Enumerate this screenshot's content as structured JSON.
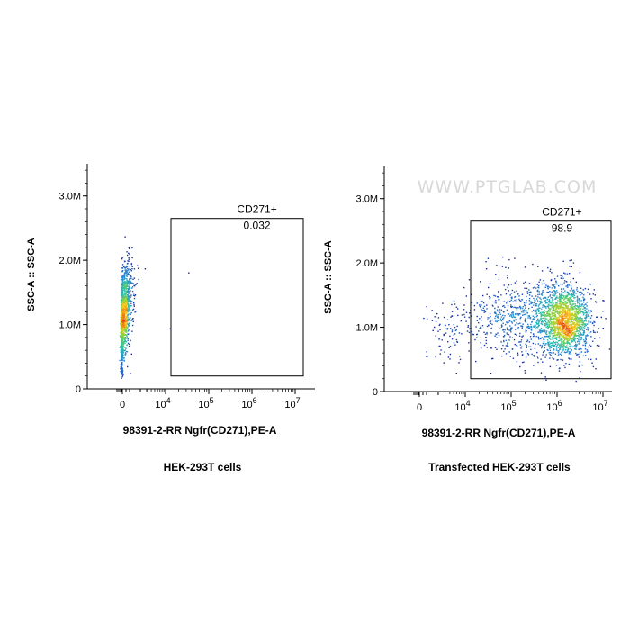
{
  "chart_data": [
    {
      "type": "scatter",
      "title": "",
      "xlabel": "98391-2-RR Ngfr(CD271),PE-A",
      "ylabel": "SSC-A :: SSC-A",
      "xscale": "biexponential",
      "xticks": [
        {
          "value": 0,
          "label": "0",
          "exp": ""
        },
        {
          "value": 10000,
          "label": "10",
          "exp": "4"
        },
        {
          "value": 100000,
          "label": "10",
          "exp": "5"
        },
        {
          "value": 1000000,
          "label": "10",
          "exp": "6"
        },
        {
          "value": 10000000,
          "label": "10",
          "exp": "7"
        }
      ],
      "yticks": [
        {
          "value": 0,
          "label": "0"
        },
        {
          "value": 1000000,
          "label": "1.0M"
        },
        {
          "value": 2000000,
          "label": "2.0M"
        },
        {
          "value": 3000000,
          "label": "3.0M"
        }
      ],
      "ylim": [
        0,
        3500000
      ],
      "gate": {
        "name": "CD271+",
        "value": "0.032",
        "x_range": [
          10000,
          10000000
        ],
        "y_range": [
          200000,
          2650000
        ]
      },
      "caption": "HEK-293T cells",
      "watermark": "",
      "populations": [
        {
          "x_center": 0,
          "x_spread_decades": 0.12,
          "y_center": 1150000,
          "y_spread": 380000,
          "tilt": "vertical",
          "count": 1400
        },
        {
          "x_center": 30000,
          "x_spread_decades": 0.05,
          "y_center": 1900000,
          "y_spread": 50000,
          "count": 1
        },
        {
          "x_center": 12000,
          "x_spread_decades": 0.05,
          "y_center": 950000,
          "y_spread": 50000,
          "count": 1
        }
      ]
    },
    {
      "type": "scatter",
      "title": "",
      "xlabel": "98391-2-RR Ngfr(CD271),PE-A",
      "ylabel": "SSC-A :: SSC-A",
      "xscale": "biexponential",
      "xticks": [
        {
          "value": 0,
          "label": "0",
          "exp": ""
        },
        {
          "value": 10000,
          "label": "10",
          "exp": "4"
        },
        {
          "value": 100000,
          "label": "10",
          "exp": "5"
        },
        {
          "value": 1000000,
          "label": "10",
          "exp": "6"
        },
        {
          "value": 10000000,
          "label": "10",
          "exp": "7"
        }
      ],
      "yticks": [
        {
          "value": 0,
          "label": "0"
        },
        {
          "value": 1000000,
          "label": "1.0M"
        },
        {
          "value": 2000000,
          "label": "2.0M"
        },
        {
          "value": 3000000,
          "label": "3.0M"
        }
      ],
      "ylim": [
        0,
        3500000
      ],
      "gate": {
        "name": "CD271+",
        "value": "98.9",
        "x_range": [
          10000,
          10000000
        ],
        "y_range": [
          200000,
          2650000
        ]
      },
      "caption": "Transfected HEK-293T cells",
      "watermark": "WWW.PTGLAB.COM",
      "populations": [
        {
          "x_center": 1400000,
          "x_spread_decades": 0.28,
          "y_center": 1100000,
          "y_spread": 280000,
          "count": 1700
        },
        {
          "x_center": 150000,
          "x_spread_decades": 0.55,
          "y_center": 1150000,
          "y_spread": 320000,
          "count": 650
        },
        {
          "x_center": 4000,
          "x_spread_decades": 0.35,
          "y_center": 1000000,
          "y_spread": 250000,
          "count": 90
        }
      ]
    }
  ]
}
